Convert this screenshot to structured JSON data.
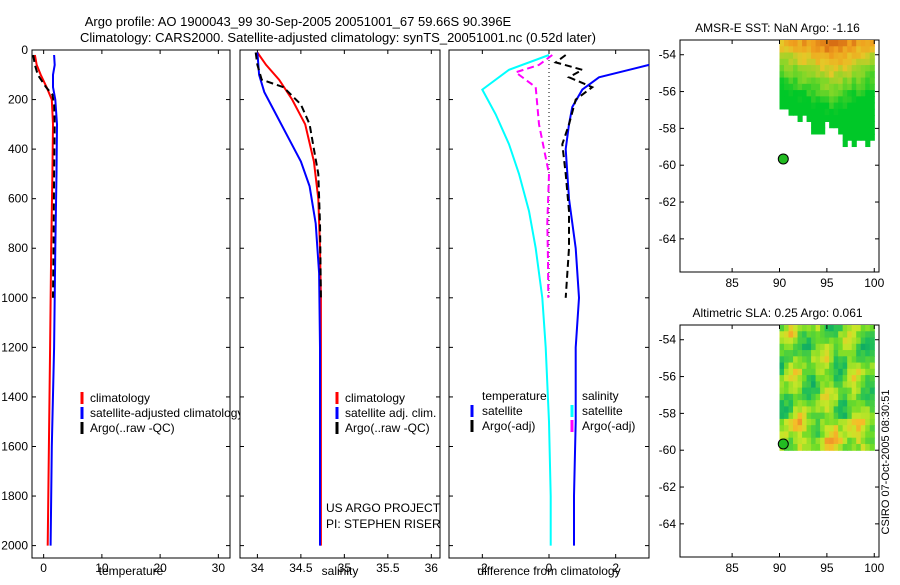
{
  "header": {
    "line1": "Argo profile: AO 1900043_99 30-Sep-2005 20051001_67 59.66S 90.396E",
    "line2": "Climatology: CARS2000. Satellite-adjusted climatology: synTS_20051001.nc (0.52d later)"
  },
  "footer": {
    "credit": "CSIRO 07-Oct-2005 08:30:51",
    "project": "US ARGO PROJECT",
    "pi": "PI: STEPHEN RISER"
  },
  "colors": {
    "climatology": "#ff0000",
    "satellite": "#0000ff",
    "argo": "#000000",
    "salinity_sat": "#00ffff",
    "salinity_argo": "#ff00ff"
  },
  "chart_data": [
    {
      "id": "temperature",
      "type": "line",
      "xlabel": "temperature",
      "ylabel": "",
      "xlim": [
        -2,
        32
      ],
      "ylim": [
        2050,
        0
      ],
      "xticks": [
        "0",
        "10",
        "20",
        "30"
      ],
      "xtick_values": [
        0,
        10,
        20,
        30
      ],
      "yticks": [
        "0",
        "200",
        "400",
        "600",
        "800",
        "1000",
        "1200",
        "1400",
        "1600",
        "1800",
        "2000"
      ],
      "ytick_values": [
        0,
        200,
        400,
        600,
        800,
        1000,
        1200,
        1400,
        1600,
        1800,
        2000
      ],
      "legend": [
        {
          "label": "climatology",
          "color": "#ff0000"
        },
        {
          "label": "satellite-adjusted climatology",
          "color": "#0000ff"
        },
        {
          "label": "Argo(..raw -QC)",
          "color": "#000000"
        }
      ],
      "series": [
        {
          "name": "climatology",
          "color": "#ff0000",
          "dash": false,
          "points": [
            [
              -1.5,
              20
            ],
            [
              -1.2,
              60
            ],
            [
              -0.5,
              100
            ],
            [
              0.5,
              150
            ],
            [
              1.4,
              200
            ],
            [
              1.6,
              300
            ],
            [
              1.5,
              500
            ],
            [
              1.3,
              800
            ],
            [
              1.1,
              1200
            ],
            [
              0.9,
              1600
            ],
            [
              0.7,
              2000
            ]
          ]
        },
        {
          "name": "satellite-adjusted climatology",
          "color": "#0000ff",
          "dash": false,
          "points": [
            [
              1.8,
              20
            ],
            [
              1.9,
              60
            ],
            [
              1.6,
              100
            ],
            [
              1.6,
              150
            ],
            [
              2.0,
              200
            ],
            [
              2.3,
              300
            ],
            [
              2.2,
              500
            ],
            [
              2.0,
              800
            ],
            [
              1.8,
              1200
            ],
            [
              1.4,
              1600
            ],
            [
              1.2,
              2000
            ]
          ]
        },
        {
          "name": "Argo(..raw -QC)",
          "color": "#000000",
          "dash": true,
          "points": [
            [
              -1.8,
              20
            ],
            [
              -1.5,
              60
            ],
            [
              -1.0,
              100
            ],
            [
              0.4,
              150
            ],
            [
              1.5,
              180
            ],
            [
              1.8,
              220
            ],
            [
              1.9,
              300
            ],
            [
              1.8,
              500
            ],
            [
              1.7,
              800
            ],
            [
              1.6,
              1000
            ]
          ]
        }
      ]
    },
    {
      "id": "salinity",
      "type": "line",
      "xlabel": "salinity",
      "ylabel": "",
      "xlim": [
        33.8,
        36.1
      ],
      "ylim": [
        2050,
        0
      ],
      "xticks": [
        "34",
        "34.5",
        "35",
        "35.5",
        "36"
      ],
      "xtick_values": [
        34,
        34.5,
        35,
        35.5,
        36
      ],
      "legend": [
        {
          "label": "climatology",
          "color": "#ff0000"
        },
        {
          "label": "satellite adj. clim.",
          "color": "#0000ff"
        },
        {
          "label": "Argo(..raw -QC)",
          "color": "#000000"
        }
      ],
      "series": [
        {
          "name": "climatology",
          "color": "#ff0000",
          "dash": false,
          "points": [
            [
              34.0,
              10
            ],
            [
              34.1,
              60
            ],
            [
              34.25,
              120
            ],
            [
              34.4,
              200
            ],
            [
              34.55,
              300
            ],
            [
              34.65,
              450
            ],
            [
              34.7,
              600
            ],
            [
              34.72,
              800
            ],
            [
              34.73,
              1000
            ],
            [
              34.73,
              1500
            ],
            [
              34.73,
              2000
            ]
          ]
        },
        {
          "name": "satellite adj. clim.",
          "color": "#0000ff",
          "dash": false,
          "points": [
            [
              34.0,
              10
            ],
            [
              34.02,
              100
            ],
            [
              34.08,
              170
            ],
            [
              34.2,
              250
            ],
            [
              34.35,
              350
            ],
            [
              34.5,
              450
            ],
            [
              34.6,
              550
            ],
            [
              34.67,
              700
            ],
            [
              34.71,
              900
            ],
            [
              34.72,
              1200
            ],
            [
              34.72,
              1600
            ],
            [
              34.72,
              2000
            ]
          ]
        },
        {
          "name": "Argo(..raw -QC)",
          "color": "#000000",
          "dash": true,
          "points": [
            [
              33.98,
              10
            ],
            [
              34.0,
              60
            ],
            [
              34.05,
              120
            ],
            [
              34.3,
              150
            ],
            [
              34.5,
              220
            ],
            [
              34.6,
              300
            ],
            [
              34.65,
              400
            ],
            [
              34.7,
              500
            ],
            [
              34.72,
              700
            ],
            [
              34.73,
              1000
            ]
          ]
        }
      ]
    },
    {
      "id": "difference",
      "type": "line",
      "xlabel": "difference from climatology",
      "ylabel": "",
      "xlim": [
        -3,
        3
      ],
      "ylim": [
        2050,
        0
      ],
      "xticks": [
        "-2",
        "0",
        "2"
      ],
      "xtick_values": [
        -2,
        0,
        2
      ],
      "legend": [
        {
          "label": "temperature",
          "color": "",
          "column": "temperature"
        },
        {
          "label": "satellite",
          "color": "#0000ff",
          "column": "temperature"
        },
        {
          "label": "Argo(-adj)",
          "color": "#000000",
          "column": "temperature"
        },
        {
          "label": "salinity",
          "color": "",
          "column": "salinity"
        },
        {
          "label": "satellite",
          "color": "#00ffff",
          "column": "salinity"
        },
        {
          "label": "Argo(-adj)",
          "color": "#ff00ff",
          "column": "salinity"
        }
      ],
      "series": [
        {
          "name": "temperature satellite",
          "color": "#0000ff",
          "dash": false,
          "points": [
            [
              3.0,
              60
            ],
            [
              1.5,
              110
            ],
            [
              1.0,
              160
            ],
            [
              0.7,
              230
            ],
            [
              0.6,
              300
            ],
            [
              0.5,
              400
            ],
            [
              0.6,
              600
            ],
            [
              0.8,
              800
            ],
            [
              0.9,
              1000
            ],
            [
              0.8,
              1200
            ],
            [
              0.8,
              1500
            ],
            [
              0.75,
              1800
            ],
            [
              0.75,
              2000
            ]
          ]
        },
        {
          "name": "temperature Argo(-adj)",
          "color": "#000000",
          "dash": true,
          "points": [
            [
              0.5,
              20
            ],
            [
              0.2,
              50
            ],
            [
              1.0,
              80
            ],
            [
              0.6,
              110
            ],
            [
              1.3,
              150
            ],
            [
              0.8,
              200
            ],
            [
              0.6,
              300
            ],
            [
              0.4,
              380
            ],
            [
              0.5,
              500
            ],
            [
              0.6,
              650
            ],
            [
              0.6,
              800
            ],
            [
              0.5,
              1000
            ]
          ]
        },
        {
          "name": "salinity satellite",
          "color": "#00ffff",
          "dash": false,
          "points": [
            [
              0.0,
              20
            ],
            [
              -1.2,
              80
            ],
            [
              -2.0,
              160
            ],
            [
              -1.6,
              260
            ],
            [
              -1.2,
              380
            ],
            [
              -0.9,
              500
            ],
            [
              -0.6,
              650
            ],
            [
              -0.4,
              800
            ],
            [
              -0.2,
              1000
            ],
            [
              -0.1,
              1200
            ],
            [
              0.0,
              1500
            ],
            [
              0.05,
              1800
            ],
            [
              0.05,
              2000
            ]
          ]
        },
        {
          "name": "salinity Argo(-adj)",
          "color": "#ff00ff",
          "dash": true,
          "points": [
            [
              0.1,
              20
            ],
            [
              -0.3,
              60
            ],
            [
              -1.0,
              90
            ],
            [
              -0.4,
              150
            ],
            [
              -0.3,
              300
            ],
            [
              0.0,
              500
            ],
            [
              -0.05,
              700
            ],
            [
              -0.03,
              850
            ],
            [
              -0.02,
              1000
            ]
          ]
        }
      ]
    },
    {
      "id": "amsr",
      "type": "heatmap",
      "title": "AMSR-E SST: NaN Argo: -1.16",
      "xlim": [
        79.5,
        100.5
      ],
      "ylim": [
        -65.8,
        -53.2
      ],
      "xticks": [
        "85",
        "90",
        "95",
        "100"
      ],
      "xtick_values": [
        85,
        90,
        95,
        100
      ],
      "yticks": [
        "-54",
        "-56",
        "-58",
        "-60",
        "-62",
        "-64"
      ],
      "ytick_values": [
        -54,
        -56,
        -58,
        -60,
        -62,
        -64
      ],
      "argo_position": [
        90.4,
        -59.66
      ],
      "field_extent": [
        90,
        100,
        -60,
        -53.2
      ]
    },
    {
      "id": "sla",
      "type": "heatmap",
      "title": "Altimetric SLA: 0.25 Argo: 0.061",
      "xlim": [
        79.5,
        100.5
      ],
      "ylim": [
        -65.8,
        -53.2
      ],
      "xticks": [
        "85",
        "90",
        "95",
        "100"
      ],
      "xtick_values": [
        85,
        90,
        95,
        100
      ],
      "yticks": [
        "-54",
        "-56",
        "-58",
        "-60",
        "-62",
        "-64"
      ],
      "ytick_values": [
        -54,
        -56,
        -58,
        -60,
        -62,
        -64
      ],
      "argo_position": [
        90.4,
        -59.66
      ],
      "field_extent": [
        90,
        100,
        -60,
        -53.2
      ]
    }
  ]
}
